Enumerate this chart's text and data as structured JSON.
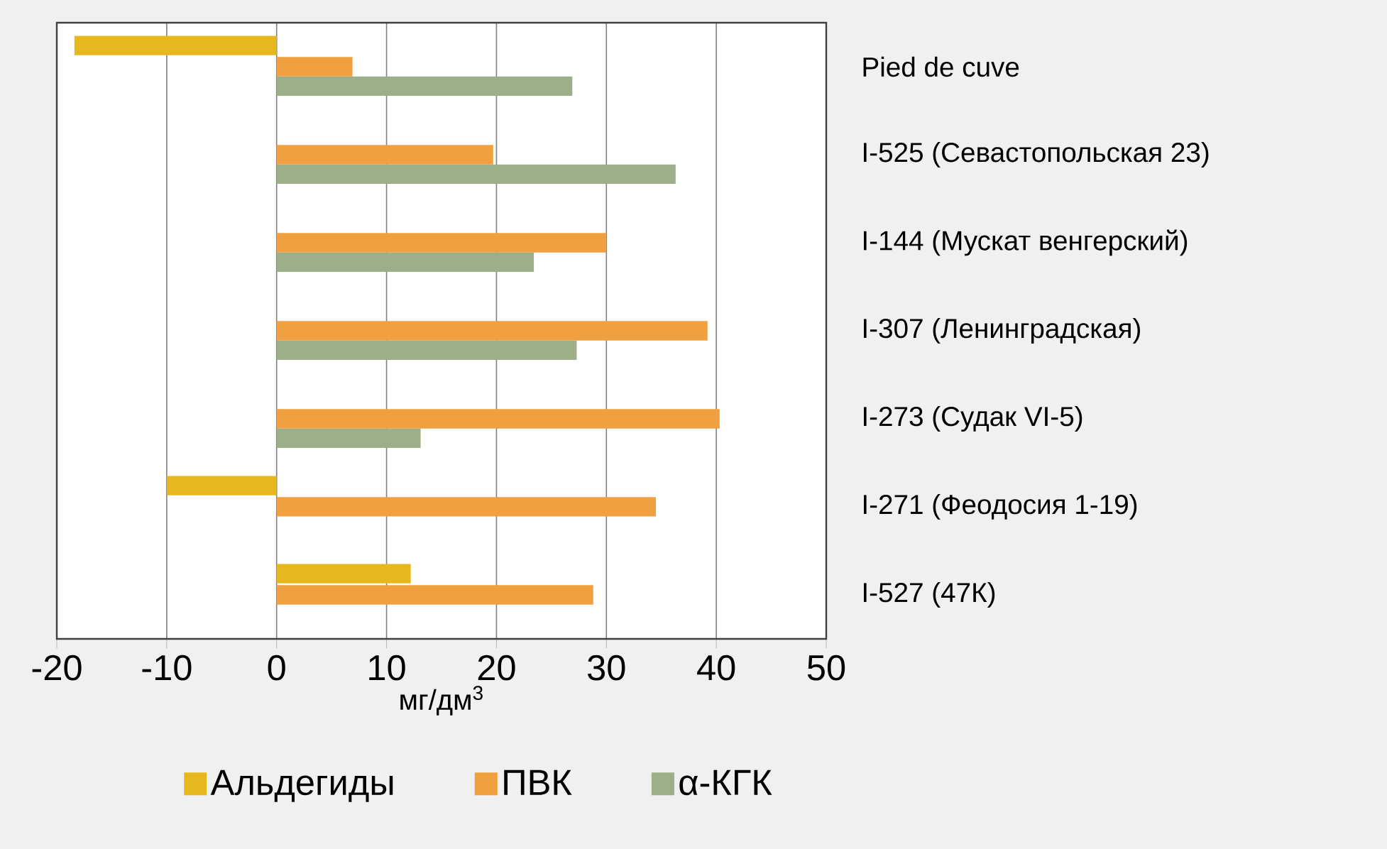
{
  "chart_data": {
    "type": "bar",
    "orientation": "horizontal",
    "categories": [
      "Pied de cuve",
      "I-525 (Севастопольская 23)",
      "I-144 (Мускат венгерский)",
      "I-307 (Ленинградская)",
      "I-273 (Судак VI-5)",
      "I-271 (Феодосия 1-19)",
      "I-527 (47К)"
    ],
    "series": [
      {
        "name": "Альдегиды",
        "color": "#e6b820",
        "values": [
          -18.4,
          null,
          null,
          null,
          null,
          -10.0,
          12.2
        ]
      },
      {
        "name": "ПВК",
        "color": "#f0a040",
        "values": [
          6.9,
          19.7,
          30.0,
          39.2,
          40.3,
          34.5,
          28.8
        ]
      },
      {
        "name": "α-КГК",
        "color": "#9caf88",
        "values": [
          26.9,
          36.3,
          23.4,
          27.3,
          13.1,
          null,
          null
        ]
      }
    ],
    "xlabel": "мг/дм$^{3}$",
    "xlim": [
      -20,
      50
    ],
    "xticks": [
      -20,
      -10,
      0,
      10,
      20,
      30,
      40,
      50
    ],
    "grid": "x",
    "legend": "bottom"
  }
}
